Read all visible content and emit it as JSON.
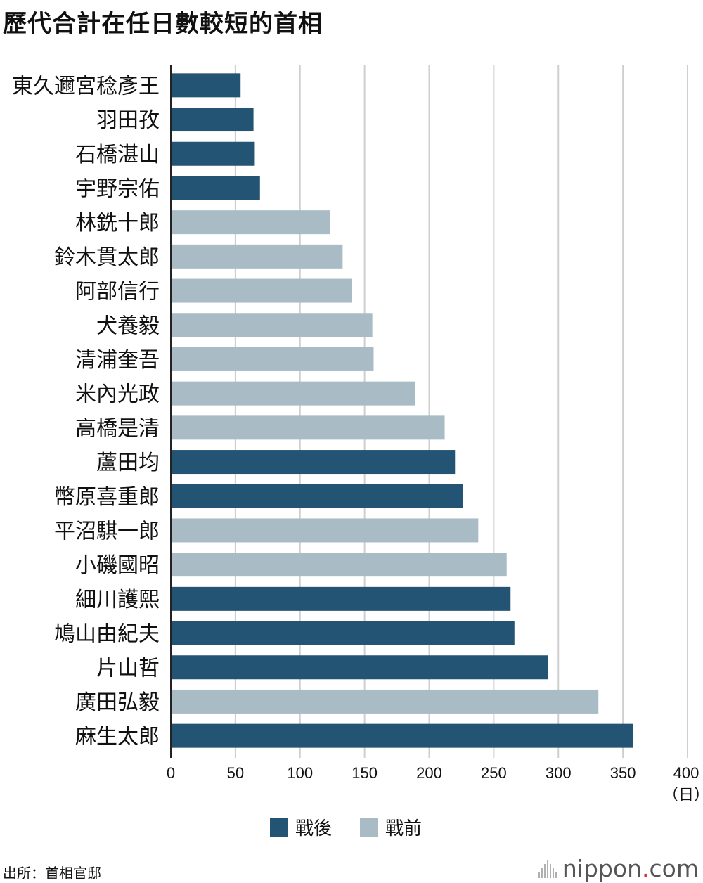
{
  "title": "歷代合計在任日數較短的首相",
  "colors": {
    "postwar": "#245473",
    "prewar": "#a9bcc6",
    "grid": "#cfcfcf",
    "axis": "#222222"
  },
  "legend": {
    "postwar": "戰後",
    "prewar": "戰前"
  },
  "source": "出所：首相官邸",
  "brand": {
    "prefix": "nippon",
    "dot": ".",
    "suffix": "com"
  },
  "chart_data": {
    "type": "bar",
    "orientation": "horizontal",
    "categories": [
      "東久邇宮稔彥王",
      "羽田孜",
      "石橋湛山",
      "宇野宗佑",
      "林銑十郎",
      "鈴木貫太郎",
      "阿部信行",
      "犬養毅",
      "清浦奎吾",
      "米內光政",
      "高橋是清",
      "蘆田均",
      "幣原喜重郎",
      "平沼騏一郎",
      "小磯國昭",
      "細川護熙",
      "鳩山由紀夫",
      "片山哲",
      "廣田弘毅",
      "麻生太郎"
    ],
    "values": [
      54,
      64,
      65,
      69,
      123,
      133,
      140,
      156,
      157,
      189,
      212,
      220,
      226,
      238,
      260,
      263,
      266,
      292,
      331,
      358
    ],
    "era": [
      "postwar",
      "postwar",
      "postwar",
      "postwar",
      "prewar",
      "prewar",
      "prewar",
      "prewar",
      "prewar",
      "prewar",
      "prewar",
      "postwar",
      "postwar",
      "prewar",
      "prewar",
      "postwar",
      "postwar",
      "postwar",
      "prewar",
      "postwar"
    ],
    "xlim": [
      0,
      400
    ],
    "xticks": [
      0,
      50,
      100,
      150,
      200,
      250,
      300,
      350,
      400
    ],
    "unit_label": "（日）",
    "grid": true,
    "legend_position": "bottom"
  }
}
